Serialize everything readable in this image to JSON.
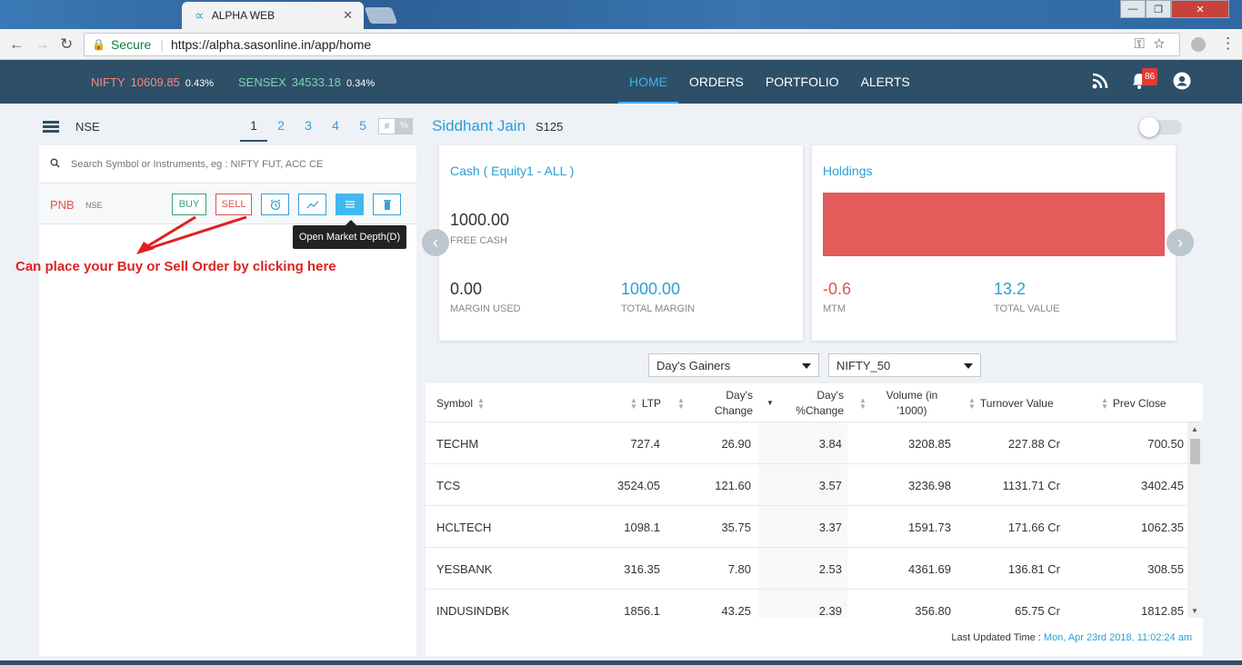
{
  "browser": {
    "tab_title": "ALPHA WEB",
    "tab_icon": "∝",
    "secure_label": "Secure",
    "url": "https://alpha.sasonline.in/app/home"
  },
  "indices": {
    "nifty": {
      "name": "NIFTY",
      "value": "10609.85",
      "change": "0.43%"
    },
    "sensex": {
      "name": "SENSEX",
      "value": "34533.18",
      "change": "0.34%"
    }
  },
  "menu": {
    "items": [
      {
        "label": "HOME",
        "active": true
      },
      {
        "label": "ORDERS",
        "active": false
      },
      {
        "label": "PORTFOLIO",
        "active": false
      },
      {
        "label": "ALERTS",
        "active": false
      }
    ]
  },
  "notifications": {
    "count": "86"
  },
  "watchlist": {
    "exchange": "NSE",
    "pages": [
      "1",
      "2",
      "3",
      "4",
      "5"
    ],
    "active_page": "1",
    "format_hash": "#",
    "format_pct": "%",
    "search_placeholder": "Search Symbol or Instruments, eg : NIFTY FUT, ACC CE",
    "row": {
      "symbol": "PNB",
      "exchange": "NSE",
      "buy": "BUY",
      "sell": "SELL"
    },
    "tooltip": "Open Market Depth(D)",
    "annotation": "Can place your Buy or Sell Order by clicking here"
  },
  "user": {
    "name": "Siddhant Jain",
    "code": "S125"
  },
  "cash_card": {
    "title": "Cash ( Equity1 - ALL )",
    "free_cash": "1000.00",
    "free_cash_label": "FREE CASH",
    "margin_used": "0.00",
    "margin_used_label": "MARGIN USED",
    "total_margin": "1000.00",
    "total_margin_label": "TOTAL MARGIN"
  },
  "holdings_card": {
    "title": "Holdings",
    "mtm": "-0.6",
    "mtm_label": "MTM",
    "total_value": "13.2",
    "total_value_label": "TOTAL VALUE",
    "bar_color": "#e55b5b"
  },
  "filters": {
    "gainers": "Day's Gainers",
    "index": "NIFTY_50"
  },
  "table": {
    "headers": {
      "symbol": "Symbol",
      "ltp": "LTP",
      "change_1": "Day's",
      "change_2": "Change",
      "pchange_1": "Day's",
      "pchange_2": "%Change",
      "volume_1": "Volume (in",
      "volume_2": "'1000)",
      "turnover": "Turnover Value",
      "prev": "Prev Close"
    },
    "rows": [
      {
        "symbol": "TECHM",
        "ltp": "727.4",
        "change": "26.90",
        "pchange": "3.84",
        "volume": "3208.85",
        "turnover": "227.88 Cr",
        "prev": "700.50"
      },
      {
        "symbol": "TCS",
        "ltp": "3524.05",
        "change": "121.60",
        "pchange": "3.57",
        "volume": "3236.98",
        "turnover": "1131.71 Cr",
        "prev": "3402.45"
      },
      {
        "symbol": "HCLTECH",
        "ltp": "1098.1",
        "change": "35.75",
        "pchange": "3.37",
        "volume": "1591.73",
        "turnover": "171.66 Cr",
        "prev": "1062.35"
      },
      {
        "symbol": "YESBANK",
        "ltp": "316.35",
        "change": "7.80",
        "pchange": "2.53",
        "volume": "4361.69",
        "turnover": "136.81 Cr",
        "prev": "308.55"
      },
      {
        "symbol": "INDUSINDBK",
        "ltp": "1856.1",
        "change": "43.25",
        "pchange": "2.39",
        "volume": "356.80",
        "turnover": "65.75 Cr",
        "prev": "1812.85"
      }
    ],
    "updated_label": "Last Updated Time :",
    "updated_time": "Mon, Apr 23rd 2018, 11:02:24 am"
  }
}
